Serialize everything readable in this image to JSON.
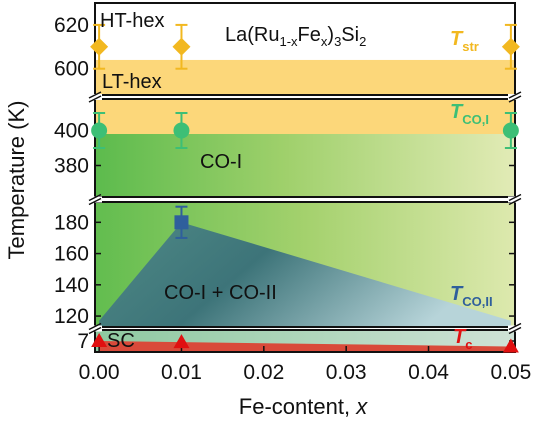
{
  "chart_data": {
    "type": "scatter",
    "title": "",
    "formula": {
      "base": "La(Ru",
      "sub1": "1-x",
      "mid": "Fe",
      "sub2": "x",
      "tail": ")",
      "sub3": "3",
      "end": "Si",
      "sub4": "2"
    },
    "xlabel": "Fe-content, x",
    "xlabel_prefix": "Fe-content, ",
    "xlabel_var": "x",
    "ylabel": "Temperature (K)",
    "x_ticks": [
      "0.00",
      "0.01",
      "0.02",
      "0.03",
      "0.04",
      "0.05"
    ],
    "xlim": [
      -0.0005,
      0.0505
    ],
    "panels": [
      {
        "name": "top",
        "ylim": [
          588,
          630
        ],
        "yticks": [
          600,
          620
        ]
      },
      {
        "name": "co1",
        "ylim": [
          362,
          418
        ],
        "yticks": [
          380,
          400
        ]
      },
      {
        "name": "co2",
        "ylim": [
          113,
          193
        ],
        "yticks": [
          120,
          140,
          160,
          180
        ]
      },
      {
        "name": "sc",
        "ylim": [
          6,
          8
        ],
        "yticks": [
          7
        ]
      }
    ],
    "phase_labels": {
      "ht_hex": "HT-hex",
      "lt_hex": "LT-hex",
      "co1": "CO-I",
      "co1_co2": "CO-I + CO-II",
      "sc": "SC"
    },
    "transition_labels": {
      "t_str": {
        "base": "T",
        "sub": "str",
        "color": "#f2b820"
      },
      "t_co1": {
        "base": "T",
        "sub": "CO,I",
        "color": "#3dbf76"
      },
      "t_co2": {
        "base": "T",
        "sub": "CO,II",
        "color": "#2f5f9c"
      },
      "t_c": {
        "base": "T",
        "sub": "c",
        "color": "#e01010"
      }
    },
    "series": [
      {
        "name": "T_str",
        "marker": "diamond",
        "color": "#f2b820",
        "x": [
          0.0,
          0.01,
          0.05
        ],
        "y": [
          610,
          610,
          610
        ],
        "err": [
          10,
          10,
          10
        ]
      },
      {
        "name": "T_CO,I",
        "marker": "circle",
        "color": "#3dbf76",
        "x": [
          0.0,
          0.01,
          0.05
        ],
        "y": [
          400,
          400,
          400
        ],
        "err": [
          10,
          10,
          10
        ]
      },
      {
        "name": "T_CO,II",
        "marker": "square",
        "color": "#2f5f9c",
        "x": [
          0.01
        ],
        "y": [
          180
        ],
        "err": [
          10
        ]
      },
      {
        "name": "T_c",
        "marker": "triangle",
        "color": "#e01010",
        "x": [
          0.0,
          0.01,
          0.05
        ],
        "y": [
          7.0,
          6.9,
          6.5
        ],
        "err": [
          0,
          0,
          0
        ]
      }
    ],
    "colors": {
      "yellow_band": "#fcd77a",
      "green_left": "#5cbb4d",
      "green_right": "#dfe9b0",
      "co2_teal": "#3a6e7e",
      "sc_red": "#d94a3a",
      "sc_bg": "#b8d9cf"
    }
  }
}
